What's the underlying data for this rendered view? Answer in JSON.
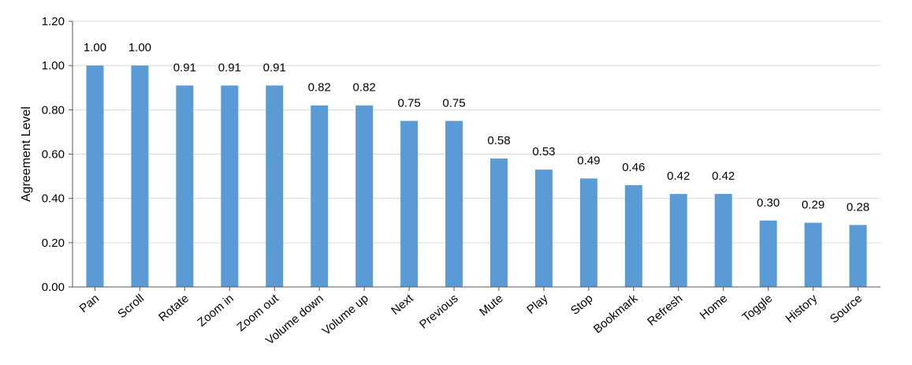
{
  "chart_data": {
    "type": "bar",
    "title": "",
    "xlabel": "",
    "ylabel": "Agreement Level",
    "ylim": [
      0,
      1.2
    ],
    "yticks": [
      "0.00",
      "0.20",
      "0.40",
      "0.60",
      "0.80",
      "1.00",
      "1.20"
    ],
    "grid": true,
    "legend": "none",
    "bar_color": "#5b9bd5",
    "categories": [
      "Pan",
      "Scroll",
      "Rotate",
      "Zoom in",
      "Zoom out",
      "Volume down",
      "Volume up",
      "Next",
      "Previous",
      "Mute",
      "Play",
      "Stop",
      "Bookmark",
      "Refresh",
      "Home",
      "Toggle",
      "History",
      "Source"
    ],
    "values": [
      1.0,
      1.0,
      0.91,
      0.91,
      0.91,
      0.82,
      0.82,
      0.75,
      0.75,
      0.58,
      0.53,
      0.49,
      0.46,
      0.42,
      0.42,
      0.3,
      0.29,
      0.28
    ],
    "value_labels": [
      "1.00",
      "1.00",
      "0.91",
      "0.91",
      "0.91",
      "0.82",
      "0.82",
      "0.75",
      "0.75",
      "0.58",
      "0.53",
      "0.49",
      "0.46",
      "0.42",
      "0.42",
      "0.30",
      "0.29",
      "0.28"
    ]
  }
}
